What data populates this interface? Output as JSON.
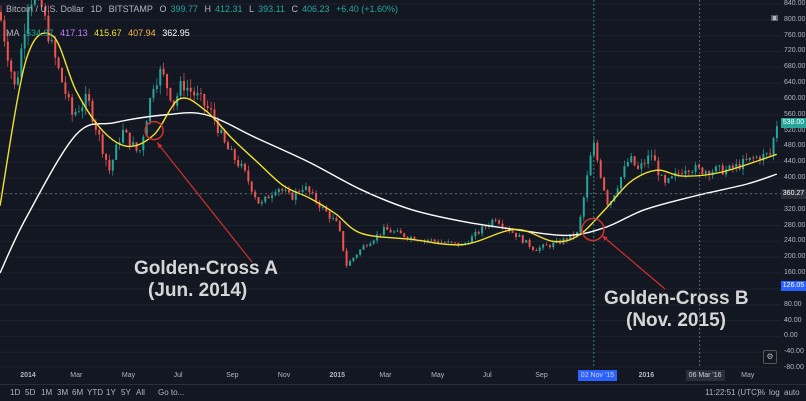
{
  "header": {
    "symbol": "Bitcoin / U.S. Dollar",
    "interval": "1D",
    "exchange": "BITSTAMP",
    "open_label": "O",
    "open": "399.77",
    "high_label": "H",
    "high": "412.31",
    "low_label": "L",
    "low": "393.11",
    "close_label": "C",
    "close": "406.23",
    "change": "+6.40 (+1.60%)",
    "ma_label": "MA",
    "ma_values": [
      "534.97",
      "417.13",
      "415.67",
      "407.94",
      "362.95"
    ]
  },
  "price_axis": {
    "ticks": [
      "840.00",
      "800.00",
      "760.00",
      "720.00",
      "680.00",
      "640.00",
      "600.00",
      "560.00",
      "520.00",
      "480.00",
      "440.00",
      "400.00",
      "320.00",
      "280.00",
      "240.00",
      "200.00",
      "160.00",
      "120.00",
      "80.00",
      "40.00",
      "0.00",
      "-40.00",
      "-80.00"
    ],
    "last_price": "538.00",
    "ma_price": "360.27",
    "low_price": "126.05"
  },
  "time_axis": {
    "ticks": [
      "2014",
      "Mar",
      "May",
      "Jul",
      "Sep",
      "Nov",
      "2015",
      "Mar",
      "May",
      "Jul",
      "Sep",
      "2016",
      "May"
    ],
    "badge_a": "02 Nov '15",
    "badge_b": "06 Mar '16"
  },
  "toolbar": {
    "ranges": [
      "1D",
      "5D",
      "1M",
      "3M",
      "6M",
      "YTD",
      "1Y",
      "5Y",
      "All"
    ],
    "goto": "Go to...",
    "clock": "11:22:51 (UTC)",
    "percent": "%",
    "log": "log",
    "auto": "auto"
  },
  "annotations": {
    "a_line1": "Golden-Cross A",
    "a_line2": "(Jun. 2014)",
    "b_line1": "Golden-Cross B",
    "b_line2": "(Nov. 2015)"
  },
  "colors": {
    "background": "#131722",
    "up": "#26a69a",
    "down": "#ef5350",
    "ma_fast": "#f0e130",
    "ma_slow": "#ffffff",
    "annotation_arrow": "#d32f2f",
    "last_price_badge": "#26a69a",
    "low_badge": "#2962ff"
  },
  "chart_data": {
    "type": "candlestick",
    "symbol": "BTCUSD",
    "y_range": [
      -80,
      850
    ],
    "x_range": [
      "2013-12",
      "2016-06"
    ],
    "ma_fast_name": "MA 50",
    "ma_slow_name": "MA 200",
    "price_path": [
      [
        "2013-12-01",
        820
      ],
      [
        "2013-12-20",
        620
      ],
      [
        "2014-01-05",
        860
      ],
      [
        "2014-01-20",
        830
      ],
      [
        "2014-02-05",
        700
      ],
      [
        "2014-02-25",
        560
      ],
      [
        "2014-03-15",
        600
      ],
      [
        "2014-04-10",
        420
      ],
      [
        "2014-04-25",
        520
      ],
      [
        "2014-05-15",
        460
      ],
      [
        "2014-06-01",
        640
      ],
      [
        "2014-06-10",
        670
      ],
      [
        "2014-06-25",
        590
      ],
      [
        "2014-07-05",
        640
      ],
      [
        "2014-07-25",
        600
      ],
      [
        "2014-08-10",
        560
      ],
      [
        "2014-08-25",
        480
      ],
      [
        "2014-09-15",
        420
      ],
      [
        "2014-10-05",
        330
      ],
      [
        "2014-10-25",
        380
      ],
      [
        "2014-11-10",
        350
      ],
      [
        "2014-11-25",
        380
      ],
      [
        "2014-12-15",
        330
      ],
      [
        "2015-01-05",
        280
      ],
      [
        "2015-01-15",
        180
      ],
      [
        "2015-02-05",
        230
      ],
      [
        "2015-03-01",
        270
      ],
      [
        "2015-04-01",
        250
      ],
      [
        "2015-05-01",
        240
      ],
      [
        "2015-06-01",
        230
      ],
      [
        "2015-07-10",
        300
      ],
      [
        "2015-07-20",
        280
      ],
      [
        "2015-08-25",
        220
      ],
      [
        "2015-09-20",
        235
      ],
      [
        "2015-10-15",
        260
      ],
      [
        "2015-11-02",
        490
      ],
      [
        "2015-11-20",
        330
      ],
      [
        "2015-12-15",
        450
      ],
      [
        "2015-12-25",
        420
      ],
      [
        "2016-01-10",
        460
      ],
      [
        "2016-01-25",
        380
      ],
      [
        "2016-02-20",
        430
      ],
      [
        "2016-03-06",
        420
      ],
      [
        "2016-04-10",
        420
      ],
      [
        "2016-05-10",
        450
      ],
      [
        "2016-05-30",
        460
      ],
      [
        "2016-06-05",
        538
      ]
    ],
    "ma_fast": [
      [
        "2013-12-01",
        330
      ],
      [
        "2014-01-01",
        700
      ],
      [
        "2014-02-01",
        760
      ],
      [
        "2014-03-01",
        620
      ],
      [
        "2014-04-01",
        520
      ],
      [
        "2014-05-01",
        480
      ],
      [
        "2014-06-01",
        510
      ],
      [
        "2014-07-01",
        600
      ],
      [
        "2014-08-01",
        570
      ],
      [
        "2014-09-01",
        500
      ],
      [
        "2014-10-01",
        440
      ],
      [
        "2014-11-01",
        380
      ],
      [
        "2014-12-01",
        350
      ],
      [
        "2015-01-01",
        310
      ],
      [
        "2015-02-01",
        260
      ],
      [
        "2015-04-01",
        245
      ],
      [
        "2015-06-01",
        232
      ],
      [
        "2015-08-01",
        270
      ],
      [
        "2015-09-15",
        240
      ],
      [
        "2015-10-15",
        255
      ],
      [
        "2015-11-15",
        320
      ],
      [
        "2015-12-15",
        390
      ],
      [
        "2016-01-15",
        420
      ],
      [
        "2016-02-15",
        405
      ],
      [
        "2016-04-01",
        415
      ],
      [
        "2016-06-05",
        460
      ]
    ],
    "ma_slow": [
      [
        "2013-12-01",
        160
      ],
      [
        "2014-01-01",
        300
      ],
      [
        "2014-03-01",
        510
      ],
      [
        "2014-04-15",
        540
      ],
      [
        "2014-06-15",
        560
      ],
      [
        "2014-08-01",
        560
      ],
      [
        "2014-10-01",
        500
      ],
      [
        "2014-12-01",
        440
      ],
      [
        "2015-02-01",
        370
      ],
      [
        "2015-04-01",
        320
      ],
      [
        "2015-06-01",
        290
      ],
      [
        "2015-08-01",
        270
      ],
      [
        "2015-10-01",
        255
      ],
      [
        "2015-11-15",
        275
      ],
      [
        "2016-01-01",
        320
      ],
      [
        "2016-03-01",
        355
      ],
      [
        "2016-05-01",
        385
      ],
      [
        "2016-06-05",
        410
      ]
    ],
    "golden_cross_a": [
      "2014-06-01",
      520
    ],
    "golden_cross_b": [
      "2015-11-01",
      270
    ]
  }
}
